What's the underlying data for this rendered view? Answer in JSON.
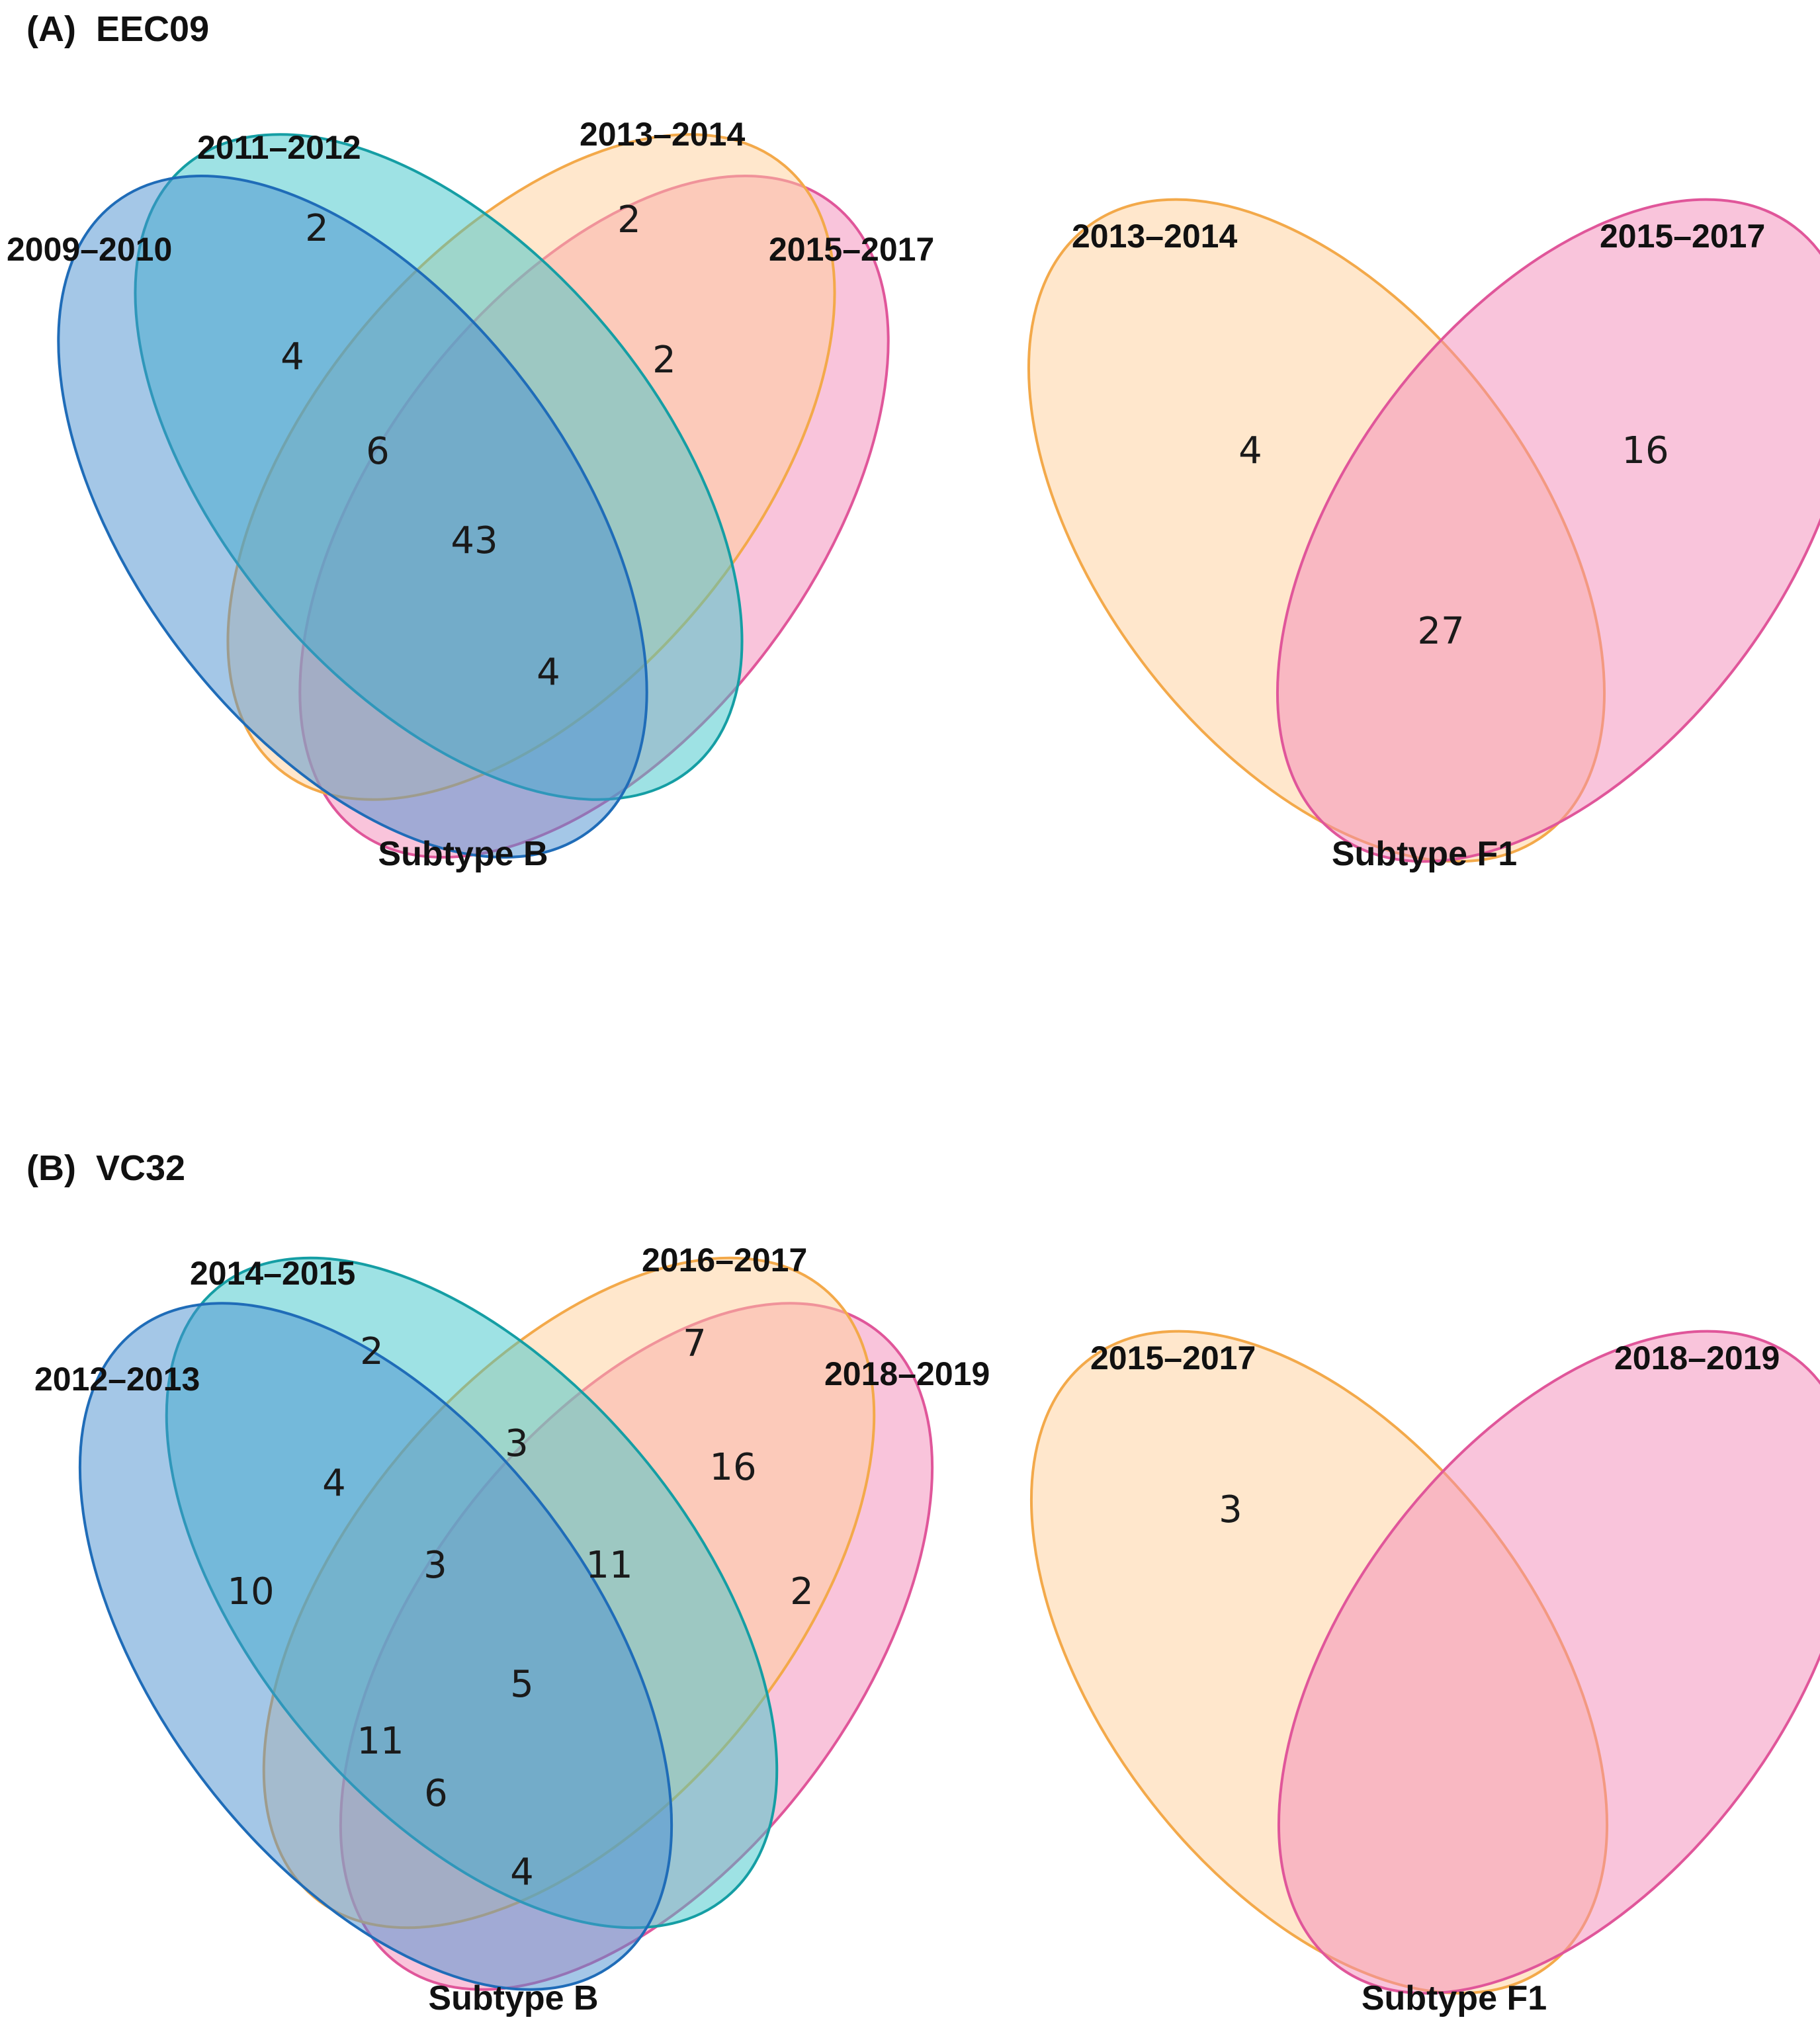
{
  "colors": {
    "blue": "#4a8fd0",
    "blue_stroke": "#1f6cb8",
    "teal": "#3ec6c9",
    "teal_stroke": "#159ea4",
    "orange": "#ffd09a",
    "orange_stroke": "#f3a94a",
    "pink": "#f48ab8",
    "pink_stroke": "#e0569a"
  },
  "panel_a": {
    "label": "(A)",
    "title": "EEC09",
    "subtype_b": {
      "sets": [
        "2009–2010",
        "2011–2012",
        "2013–2014",
        "2015–2017"
      ],
      "counts": {
        "only_2011_2012": "2",
        "only_2013_2014": "2",
        "region_2009_2011": "4",
        "region_2013_2015": "2",
        "region_2009_2011_2013": "6",
        "region_all_four": "43",
        "region_2009_2011_2015": "4"
      },
      "caption": "Subtype B"
    },
    "subtype_f1": {
      "sets": [
        "2013–2014",
        "2015–2017"
      ],
      "counts": {
        "only_2013_2014": "4",
        "only_2015_2017": "16",
        "both": "27"
      },
      "caption": "Subtype F1"
    }
  },
  "panel_b": {
    "label": "(B)",
    "title": "VC32",
    "subtype_b": {
      "sets": [
        "2012–2013",
        "2014–2015",
        "2016–2017",
        "2018–2019"
      ],
      "counts": {
        "only_2014_2015": "2",
        "only_2016_2017": "7",
        "region_2014_2016": "3",
        "region_2016_2018": "16",
        "region_2012_2014": "4",
        "only_2012_2013": "10",
        "region_2012_2014_2016": "3",
        "region_2014_2016_2018": "11",
        "only_2018_2019": "2",
        "region_all_four": "5",
        "region_2012_2016": "11",
        "region_2012_2016_2018": "6",
        "region_2012_2018": "4"
      },
      "caption": "Subtype B"
    },
    "subtype_f1": {
      "sets": [
        "2015–2017",
        "2018–2019"
      ],
      "counts": {
        "only_2015_2017": "3"
      },
      "caption": "Subtype F1"
    }
  }
}
